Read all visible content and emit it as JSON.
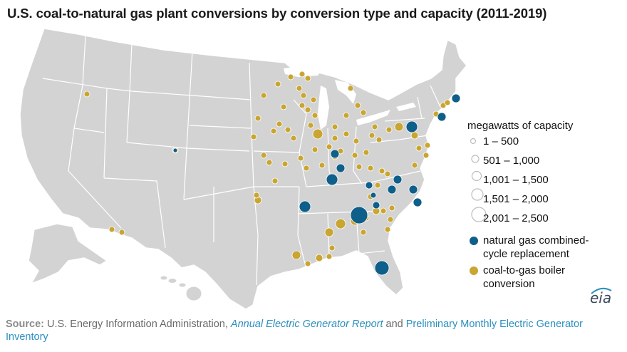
{
  "title": "U.S. coal-to-natural gas plant conversions by conversion type and capacity (2011-2019)",
  "legend": {
    "heading": "megawatts of capacity",
    "sizes": [
      "1 – 500",
      "501 – 1,000",
      "1,001 – 1,500",
      "1,501 – 2,000",
      "2,001 – 2,500"
    ],
    "categories": [
      {
        "label_line1": "natural gas combined-",
        "label_line2": "cycle replacement",
        "color": "#0e5f8a"
      },
      {
        "label_line1": "coal-to-gas boiler",
        "label_line2": "conversion",
        "color": "#c9a531"
      }
    ]
  },
  "source": {
    "label": "Source:",
    "text1": " U.S. Energy Information Administration, ",
    "report": "Annual Electric Generator Report",
    "text2": " and ",
    "inventory": "Preliminary Monthly Electric Generator Inventory"
  },
  "logo": "eia",
  "colors": {
    "land": "#d3d3d3",
    "border": "#ffffff",
    "ngcc": "#0e5f8a",
    "boiler": "#c9a531"
  }
}
